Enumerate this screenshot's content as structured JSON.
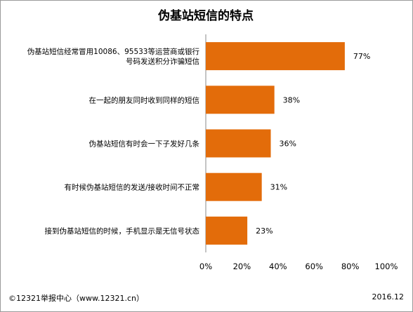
{
  "chart_data": {
    "type": "bar",
    "orientation": "horizontal",
    "title": "伪基站短信的特点",
    "categories": [
      [
        "伪基站短信经常冒用10086、95533等运营商或银行",
        "号码发送积分诈骗短信"
      ],
      [
        "在一起的朋友同时收到同样的短信"
      ],
      [
        "伪基站短信有时会一下子发好几条"
      ],
      [
        "有时候伪基站短信的发送/接收时间不正常"
      ],
      [
        "接到伪基站短信的时候，手机显示是无信号状态"
      ]
    ],
    "values": [
      77,
      38,
      36,
      31,
      23
    ],
    "value_labels": [
      "77%",
      "38%",
      "36%",
      "31%",
      "23%"
    ],
    "xlim": [
      0,
      100
    ],
    "xticks": [
      "0%",
      "20%",
      "40%",
      "60%",
      "80%",
      "100%"
    ],
    "bar_color": "#E36C0A",
    "grid": false,
    "legend": "none"
  },
  "footer": {
    "source": "©12321举报中心（www.12321.cn）",
    "date": "2016.12"
  }
}
